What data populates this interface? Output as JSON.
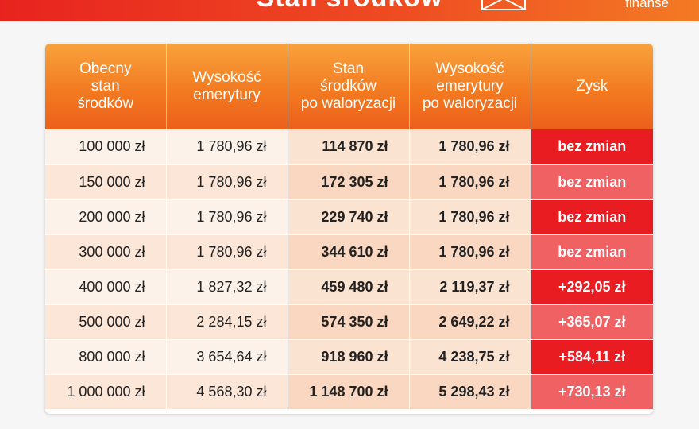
{
  "banner": {
    "title": "Stan środków",
    "brand": "finanse"
  },
  "table": {
    "headers": [
      "Obecny\nstan\nśrodków",
      "Wysokość\nemerytury",
      "Stan\nśrodków\npo waloryzacji",
      "Wysokość\nemerytury\npo waloryzacji",
      "Zysk"
    ],
    "rows": [
      [
        "100 000 zł",
        "1 780,96 zł",
        "114 870 zł",
        "1 780,96 zł",
        "bez zmian"
      ],
      [
        "150 000 zł",
        "1 780,96 zł",
        "172 305 zł",
        "1 780,96 zł",
        "bez zmian"
      ],
      [
        "200 000 zł",
        "1 780,96 zł",
        "229 740 zł",
        "1 780,96 zł",
        "bez zmian"
      ],
      [
        "300 000 zł",
        "1 780,96 zł",
        "344 610 zł",
        "1 780,96 zł",
        "bez zmian"
      ],
      [
        "400 000 zł",
        "1 827,32 zł",
        "459 480 zł",
        "2 119,37 zł",
        "+292,05 zł"
      ],
      [
        "500 000 zł",
        "2 284,15 zł",
        "574 350 zł",
        "2 649,22 zł",
        "+365,07 zł"
      ],
      [
        "800 000 zł",
        "3 654,64 zł",
        "918 960 zł",
        "4 238,75 zł",
        "+584,11 zł"
      ],
      [
        "1 000 000 zł",
        "4 568,30 zł",
        "1 148 700 zł",
        "5 298,43 zł",
        "+730,13 zł"
      ]
    ]
  },
  "colors": {
    "header_orange": "#f2771f",
    "gain_red": "#e91c22",
    "gain_light_red": "#ef6163",
    "banner_red": "#e8231f"
  }
}
